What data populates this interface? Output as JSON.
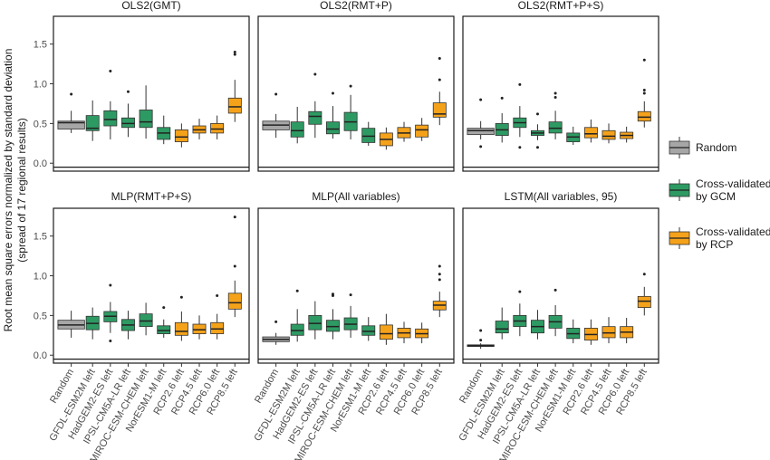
{
  "chart_data": {
    "type": "box",
    "ylabel_line1": "Root mean square errors normalized by standard deviation",
    "ylabel_line2": "(spread of 17 regional results)",
    "ylim": [
      -0.1,
      1.85
    ],
    "yticks": [
      "0.0",
      "0.5",
      "1.0",
      "1.5"
    ],
    "categories": [
      "Random",
      "GFDL-ESM2M left",
      "HadGEM2-ES left",
      "IPSL-CM5A-LR left",
      "MIROC-ESM-CHEM left",
      "NorESM1-M left",
      "RCP2.6 left",
      "RCP4.5 left",
      "RCP6.0 left",
      "RCP8.5 left"
    ],
    "category_groups": [
      "Random",
      "GCM",
      "GCM",
      "GCM",
      "GCM",
      "GCM",
      "RCP",
      "RCP",
      "RCP",
      "RCP"
    ],
    "colors": {
      "Random": "#a6a6a6",
      "GCM": "#2e9a63",
      "RCP": "#f5a21b"
    },
    "legend": [
      {
        "group": "Random",
        "lines": [
          "Random"
        ]
      },
      {
        "group": "GCM",
        "lines": [
          "Cross-validated",
          "by GCM"
        ]
      },
      {
        "group": "RCP",
        "lines": [
          "Cross-validated",
          "by RCP"
        ]
      }
    ],
    "panels": [
      {
        "title": "OLS2(GMT)",
        "boxes": [
          {
            "q1": 0.43,
            "median": 0.51,
            "q3": 0.53,
            "lo": 0.38,
            "hi": 0.66,
            "out": [
              0.87
            ]
          },
          {
            "q1": 0.41,
            "median": 0.44,
            "q3": 0.6,
            "lo": 0.28,
            "hi": 0.79,
            "out": []
          },
          {
            "q1": 0.47,
            "median": 0.55,
            "q3": 0.66,
            "lo": 0.3,
            "hi": 0.78,
            "out": [
              1.16
            ]
          },
          {
            "q1": 0.45,
            "median": 0.5,
            "q3": 0.57,
            "lo": 0.33,
            "hi": 0.75,
            "out": [
              0.9
            ]
          },
          {
            "q1": 0.45,
            "median": 0.52,
            "q3": 0.67,
            "lo": 0.31,
            "hi": 0.98,
            "out": []
          },
          {
            "q1": 0.3,
            "median": 0.38,
            "q3": 0.45,
            "lo": 0.24,
            "hi": 0.6,
            "out": []
          },
          {
            "q1": 0.27,
            "median": 0.33,
            "q3": 0.42,
            "lo": 0.2,
            "hi": 0.5,
            "out": []
          },
          {
            "q1": 0.38,
            "median": 0.42,
            "q3": 0.47,
            "lo": 0.3,
            "hi": 0.56,
            "out": []
          },
          {
            "q1": 0.38,
            "median": 0.43,
            "q3": 0.5,
            "lo": 0.3,
            "hi": 0.6,
            "out": []
          },
          {
            "q1": 0.63,
            "median": 0.71,
            "q3": 0.82,
            "lo": 0.52,
            "hi": 1.05,
            "out": [
              1.37,
              1.4
            ]
          }
        ]
      },
      {
        "title": "OLS2(RMT+P)",
        "boxes": [
          {
            "q1": 0.42,
            "median": 0.48,
            "q3": 0.53,
            "lo": 0.32,
            "hi": 0.62,
            "out": [
              0.87
            ]
          },
          {
            "q1": 0.33,
            "median": 0.41,
            "q3": 0.52,
            "lo": 0.25,
            "hi": 0.71,
            "out": []
          },
          {
            "q1": 0.49,
            "median": 0.59,
            "q3": 0.65,
            "lo": 0.32,
            "hi": 0.78,
            "out": [
              1.12
            ]
          },
          {
            "q1": 0.37,
            "median": 0.43,
            "q3": 0.52,
            "lo": 0.31,
            "hi": 0.72,
            "out": [
              0.88
            ]
          },
          {
            "q1": 0.41,
            "median": 0.52,
            "q3": 0.64,
            "lo": 0.3,
            "hi": 0.86,
            "out": [
              0.97
            ]
          },
          {
            "q1": 0.26,
            "median": 0.34,
            "q3": 0.44,
            "lo": 0.22,
            "hi": 0.52,
            "out": []
          },
          {
            "q1": 0.22,
            "median": 0.3,
            "q3": 0.38,
            "lo": 0.17,
            "hi": 0.45,
            "out": []
          },
          {
            "q1": 0.32,
            "median": 0.38,
            "q3": 0.45,
            "lo": 0.27,
            "hi": 0.52,
            "out": []
          },
          {
            "q1": 0.33,
            "median": 0.42,
            "q3": 0.48,
            "lo": 0.28,
            "hi": 0.57,
            "out": []
          },
          {
            "q1": 0.58,
            "median": 0.62,
            "q3": 0.76,
            "lo": 0.48,
            "hi": 0.9,
            "out": [
              1.05,
              1.32
            ]
          }
        ]
      },
      {
        "title": "OLS2(RMT+P+S)",
        "boxes": [
          {
            "q1": 0.36,
            "median": 0.41,
            "q3": 0.44,
            "lo": 0.3,
            "hi": 0.53,
            "out": [
              0.21,
              0.8
            ]
          },
          {
            "q1": 0.35,
            "median": 0.42,
            "q3": 0.5,
            "lo": 0.26,
            "hi": 0.63,
            "out": [
              0.82
            ]
          },
          {
            "q1": 0.45,
            "median": 0.51,
            "q3": 0.57,
            "lo": 0.33,
            "hi": 0.72,
            "out": [
              0.99,
              0.2
            ]
          },
          {
            "q1": 0.35,
            "median": 0.38,
            "q3": 0.41,
            "lo": 0.29,
            "hi": 0.49,
            "out": [
              0.62,
              0.2
            ]
          },
          {
            "q1": 0.38,
            "median": 0.44,
            "q3": 0.52,
            "lo": 0.3,
            "hi": 0.66,
            "out": [
              0.83,
              0.88
            ]
          },
          {
            "q1": 0.27,
            "median": 0.33,
            "q3": 0.38,
            "lo": 0.23,
            "hi": 0.46,
            "out": []
          },
          {
            "q1": 0.32,
            "median": 0.37,
            "q3": 0.45,
            "lo": 0.26,
            "hi": 0.55,
            "out": []
          },
          {
            "q1": 0.3,
            "median": 0.34,
            "q3": 0.41,
            "lo": 0.25,
            "hi": 0.5,
            "out": []
          },
          {
            "q1": 0.31,
            "median": 0.35,
            "q3": 0.39,
            "lo": 0.26,
            "hi": 0.46,
            "out": []
          },
          {
            "q1": 0.53,
            "median": 0.58,
            "q3": 0.65,
            "lo": 0.45,
            "hi": 0.78,
            "out": [
              0.88,
              0.92,
              1.3
            ]
          }
        ]
      },
      {
        "title": "MLP(RMT+P+S)",
        "boxes": [
          {
            "q1": 0.33,
            "median": 0.38,
            "q3": 0.44,
            "lo": 0.22,
            "hi": 0.56,
            "out": []
          },
          {
            "q1": 0.32,
            "median": 0.4,
            "q3": 0.49,
            "lo": 0.2,
            "hi": 0.6,
            "out": []
          },
          {
            "q1": 0.42,
            "median": 0.49,
            "q3": 0.55,
            "lo": 0.28,
            "hi": 0.67,
            "out": [
              0.88,
              0.18
            ]
          },
          {
            "q1": 0.31,
            "median": 0.38,
            "q3": 0.45,
            "lo": 0.2,
            "hi": 0.56,
            "out": []
          },
          {
            "q1": 0.36,
            "median": 0.43,
            "q3": 0.52,
            "lo": 0.25,
            "hi": 0.66,
            "out": []
          },
          {
            "q1": 0.27,
            "median": 0.31,
            "q3": 0.37,
            "lo": 0.22,
            "hi": 0.45,
            "out": [
              0.6
            ]
          },
          {
            "q1": 0.25,
            "median": 0.3,
            "q3": 0.41,
            "lo": 0.18,
            "hi": 0.55,
            "out": [
              0.73
            ]
          },
          {
            "q1": 0.27,
            "median": 0.32,
            "q3": 0.39,
            "lo": 0.2,
            "hi": 0.5,
            "out": []
          },
          {
            "q1": 0.27,
            "median": 0.33,
            "q3": 0.41,
            "lo": 0.2,
            "hi": 0.52,
            "out": [
              0.75
            ]
          },
          {
            "q1": 0.58,
            "median": 0.66,
            "q3": 0.78,
            "lo": 0.48,
            "hi": 0.94,
            "out": [
              1.12,
              1.74
            ]
          }
        ]
      },
      {
        "title": "MLP(All variables)",
        "boxes": [
          {
            "q1": 0.17,
            "median": 0.2,
            "q3": 0.23,
            "lo": 0.13,
            "hi": 0.28,
            "out": [
              0.42
            ]
          },
          {
            "q1": 0.25,
            "median": 0.31,
            "q3": 0.39,
            "lo": 0.17,
            "hi": 0.58,
            "out": [
              0.81
            ]
          },
          {
            "q1": 0.32,
            "median": 0.4,
            "q3": 0.5,
            "lo": 0.2,
            "hi": 0.68,
            "out": []
          },
          {
            "q1": 0.3,
            "median": 0.36,
            "q3": 0.44,
            "lo": 0.2,
            "hi": 0.58,
            "out": [
              0.75,
              0.77
            ]
          },
          {
            "q1": 0.32,
            "median": 0.39,
            "q3": 0.47,
            "lo": 0.22,
            "hi": 0.62,
            "out": [
              0.76
            ]
          },
          {
            "q1": 0.25,
            "median": 0.3,
            "q3": 0.37,
            "lo": 0.18,
            "hi": 0.48,
            "out": []
          },
          {
            "q1": 0.2,
            "median": 0.27,
            "q3": 0.38,
            "lo": 0.13,
            "hi": 0.52,
            "out": []
          },
          {
            "q1": 0.22,
            "median": 0.28,
            "q3": 0.34,
            "lo": 0.15,
            "hi": 0.42,
            "out": []
          },
          {
            "q1": 0.22,
            "median": 0.27,
            "q3": 0.33,
            "lo": 0.15,
            "hi": 0.41,
            "out": []
          },
          {
            "q1": 0.57,
            "median": 0.63,
            "q3": 0.68,
            "lo": 0.48,
            "hi": 0.8,
            "out": [
              0.95,
              1.02,
              1.12
            ]
          }
        ]
      },
      {
        "title": "LSTM(All variables, 95)",
        "boxes": [
          {
            "q1": 0.11,
            "median": 0.12,
            "q3": 0.13,
            "lo": 0.08,
            "hi": 0.15,
            "out": [
              0.19,
              0.31
            ]
          },
          {
            "q1": 0.28,
            "median": 0.33,
            "q3": 0.43,
            "lo": 0.2,
            "hi": 0.6,
            "out": []
          },
          {
            "q1": 0.36,
            "median": 0.43,
            "q3": 0.5,
            "lo": 0.24,
            "hi": 0.65,
            "out": [
              0.8
            ]
          },
          {
            "q1": 0.28,
            "median": 0.36,
            "q3": 0.44,
            "lo": 0.2,
            "hi": 0.57,
            "out": []
          },
          {
            "q1": 0.34,
            "median": 0.42,
            "q3": 0.5,
            "lo": 0.24,
            "hi": 0.63,
            "out": [
              0.82
            ]
          },
          {
            "q1": 0.21,
            "median": 0.27,
            "q3": 0.34,
            "lo": 0.15,
            "hi": 0.45,
            "out": []
          },
          {
            "q1": 0.19,
            "median": 0.26,
            "q3": 0.34,
            "lo": 0.13,
            "hi": 0.45,
            "out": []
          },
          {
            "q1": 0.22,
            "median": 0.28,
            "q3": 0.36,
            "lo": 0.15,
            "hi": 0.48,
            "out": []
          },
          {
            "q1": 0.22,
            "median": 0.29,
            "q3": 0.36,
            "lo": 0.15,
            "hi": 0.47,
            "out": []
          },
          {
            "q1": 0.6,
            "median": 0.68,
            "q3": 0.74,
            "lo": 0.5,
            "hi": 0.86,
            "out": [
              1.02
            ]
          }
        ]
      }
    ]
  }
}
